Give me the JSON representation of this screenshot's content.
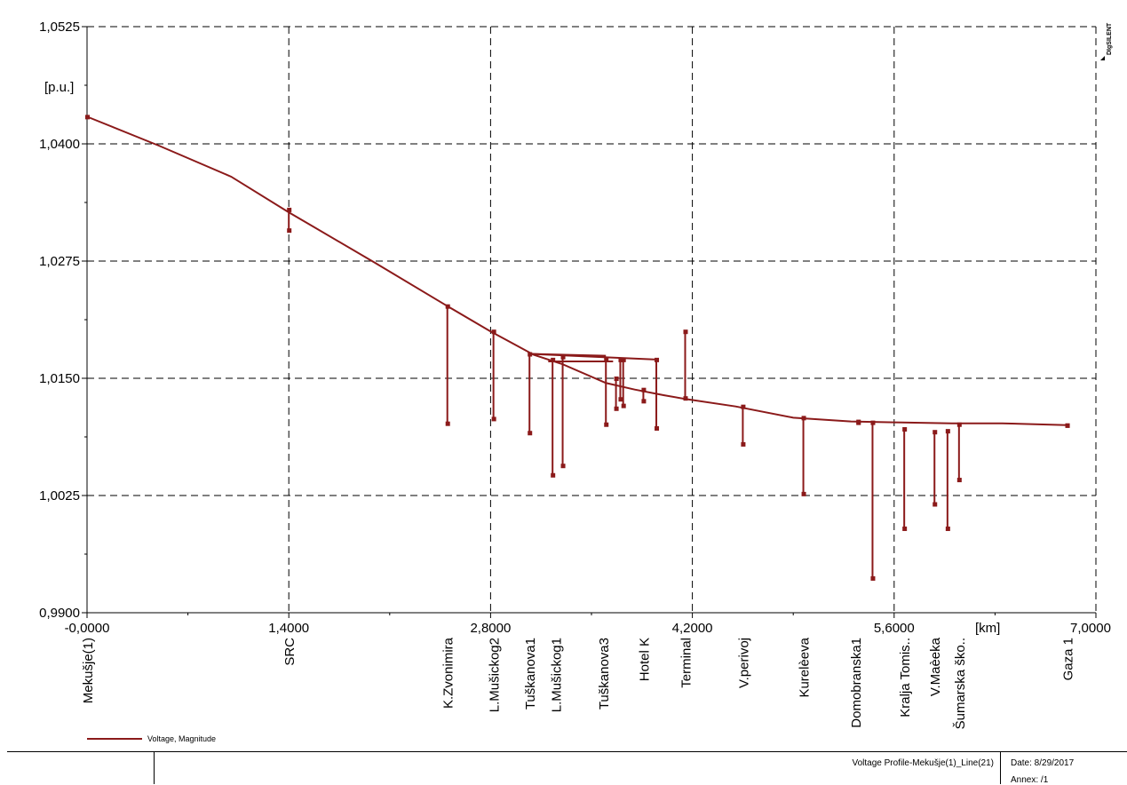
{
  "chart_data": {
    "type": "line",
    "ylabel": "[p.u.]",
    "xlabel": "[km]",
    "xlim": [
      0,
      7.0
    ],
    "ylim": [
      0.99,
      1.0525
    ],
    "grid": true,
    "x_ticks": [
      "-0,0000",
      "1,4000",
      "2,8000",
      "4,2000",
      "5,6000",
      "7,0000"
    ],
    "x_tick_values": [
      0,
      1.4,
      2.8,
      4.2,
      5.6,
      7.0
    ],
    "y_ticks": [
      "0,9900",
      "1,0025",
      "1,0150",
      "1,0275",
      "1,0400",
      "1,0525"
    ],
    "y_tick_values": [
      0.99,
      1.0025,
      1.015,
      1.0275,
      1.04,
      1.0525
    ],
    "legend_position": "bottom-left",
    "series": [
      {
        "name": "Voltage, Magnitude",
        "color": "#8b1a1a",
        "main_x": [
          0,
          0.5,
          1.0,
          1.4,
          2.0,
          2.5,
          2.8,
          3.1,
          3.3,
          3.6,
          3.8,
          4.0,
          4.15,
          4.5,
          4.9,
          5.3,
          5.6,
          6.0,
          6.35,
          6.8
        ],
        "main_y": [
          1.0429,
          1.0398,
          1.0365,
          1.0327,
          1.0273,
          1.0227,
          1.02,
          1.0175,
          1.0165,
          1.0145,
          1.0138,
          1.0132,
          1.0128,
          1.012,
          1.0108,
          1.0104,
          1.0103,
          1.0102,
          1.0102,
          1.01
        ],
        "branch_lines": [
          {
            "x": [
              3.07,
              3.6
            ],
            "y": [
              1.0176,
              1.0174
            ]
          },
          {
            "x": [
              3.07,
              3.95
            ],
            "y": [
              1.0176,
              1.017
            ]
          },
          {
            "x": [
              3.2,
              3.65
            ],
            "y": [
              1.0168,
              1.0168
            ]
          }
        ],
        "drops": [
          {
            "x": 1.4,
            "y_from": 1.033,
            "y_to": 1.0308
          },
          {
            "x": 2.5,
            "y_from": 1.0227,
            "y_to": 1.0102
          },
          {
            "x": 2.82,
            "y_from": 1.02,
            "y_to": 1.0107
          },
          {
            "x": 3.07,
            "y_from": 1.0176,
            "y_to": 1.0092
          },
          {
            "x": 3.23,
            "y_from": 1.017,
            "y_to": 1.0047
          },
          {
            "x": 3.3,
            "y_from": 1.0173,
            "y_to": 1.0057
          },
          {
            "x": 3.6,
            "y_from": 1.0171,
            "y_to": 1.0101
          },
          {
            "x": 3.67,
            "y_from": 1.015,
            "y_to": 1.0118
          },
          {
            "x": 3.7,
            "y_from": 1.017,
            "y_to": 1.0128
          },
          {
            "x": 3.72,
            "y_from": 1.017,
            "y_to": 1.0121
          },
          {
            "x": 3.86,
            "y_from": 1.0138,
            "y_to": 1.0126
          },
          {
            "x": 3.95,
            "y_from": 1.017,
            "y_to": 1.0097
          },
          {
            "x": 4.15,
            "y_from": 1.02,
            "y_to": 1.0129
          },
          {
            "x": 4.55,
            "y_from": 1.012,
            "y_to": 1.008
          },
          {
            "x": 4.97,
            "y_from": 1.0108,
            "y_to": 1.0027
          },
          {
            "x": 5.35,
            "y_from": 1.0104,
            "y_to": 1.0103
          },
          {
            "x": 5.45,
            "y_from": 1.0103,
            "y_to": 0.9937
          },
          {
            "x": 5.67,
            "y_from": 1.0096,
            "y_to": 0.999
          },
          {
            "x": 5.88,
            "y_from": 1.0093,
            "y_to": 1.0016
          },
          {
            "x": 5.97,
            "y_from": 1.0094,
            "y_to": 0.999
          },
          {
            "x": 6.05,
            "y_from": 1.0101,
            "y_to": 1.0042
          },
          {
            "x": 6.8,
            "y_from": 1.01,
            "y_to": 1.01
          }
        ]
      }
    ],
    "bus_labels": [
      {
        "x": 0.0,
        "label": "Mekušje(1)"
      },
      {
        "x": 1.4,
        "label": "SRC"
      },
      {
        "x": 2.5,
        "label": "K.Zvonimira"
      },
      {
        "x": 2.82,
        "label": "L.Mušickog2"
      },
      {
        "x": 3.07,
        "label": "Tuškanova1"
      },
      {
        "x": 3.25,
        "label": "L.Mušickog1"
      },
      {
        "x": 3.58,
        "label": "Tuškanova3"
      },
      {
        "x": 3.86,
        "label": "Hotel K"
      },
      {
        "x": 4.15,
        "label": "Terminal"
      },
      {
        "x": 4.55,
        "label": "V.perivoj"
      },
      {
        "x": 4.97,
        "label": "Kurelèeva"
      },
      {
        "x": 5.33,
        "label": "Domobranska1"
      },
      {
        "x": 5.67,
        "label": "Kralja Tomis.."
      },
      {
        "x": 5.88,
        "label": "V.Maèeka"
      },
      {
        "x": 6.05,
        "label": "Šumarska ško.."
      },
      {
        "x": 6.8,
        "label": "Gaza 1"
      }
    ]
  },
  "footer": {
    "title": "Voltage Profile-Mekušje(1)_Line(21)",
    "date": "Date: 8/29/2017",
    "annex": "Annex:  /1"
  },
  "brand": "DIgSILENT"
}
